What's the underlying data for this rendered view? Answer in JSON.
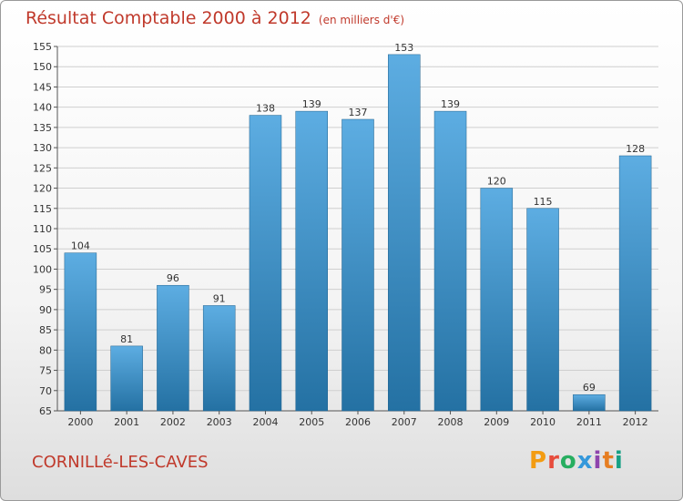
{
  "title": "Résultat Comptable 2000 à 2012",
  "subtitle": "(en milliers d'€)",
  "commune": "CORNILLé-LES-CAVES",
  "logo": {
    "text": "Proxiti",
    "colors": [
      "#f39c12",
      "#e74c3c",
      "#27ae60",
      "#3498db",
      "#8e44ad",
      "#e67e22",
      "#16a085"
    ]
  },
  "colors": {
    "bar_top": "#5dade2",
    "bar_bottom": "#2471a3",
    "title": "#c0392b"
  },
  "chart_data": {
    "type": "bar",
    "categories": [
      "2000",
      "2001",
      "2002",
      "2003",
      "2004",
      "2005",
      "2006",
      "2007",
      "2008",
      "2009",
      "2010",
      "2011",
      "2012"
    ],
    "values": [
      104,
      81,
      96,
      91,
      138,
      139,
      137,
      153,
      139,
      120,
      115,
      69,
      128
    ],
    "ylim": [
      65,
      155
    ],
    "yticks": [
      65,
      70,
      75,
      80,
      85,
      90,
      95,
      100,
      105,
      110,
      115,
      120,
      125,
      130,
      135,
      140,
      145,
      150,
      155
    ],
    "grid": true
  }
}
